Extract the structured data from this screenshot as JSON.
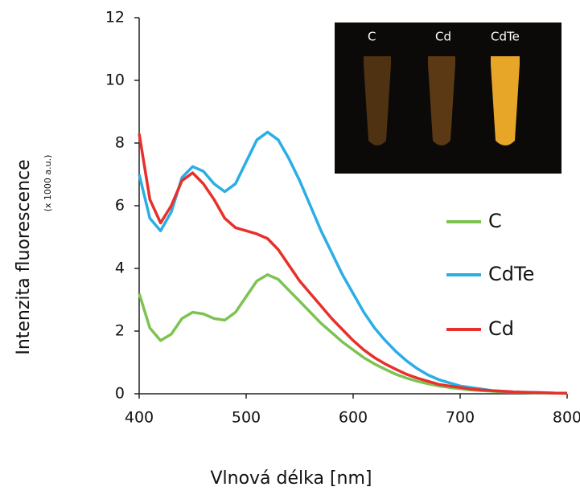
{
  "chart_data": {
    "type": "line",
    "x_label": "Vlnová délka [nm]",
    "y_label": "Intenzita fluorescence",
    "y_label_unit": "(x 1000 a.u.)",
    "inset_labels": [
      "C",
      "Cd",
      "CdTe"
    ],
    "xlim": [
      400,
      800
    ],
    "xticks": [
      400,
      500,
      600,
      700,
      800
    ],
    "ylim": [
      0,
      12
    ],
    "yticks": [
      0,
      2,
      4,
      6,
      8,
      10,
      12
    ],
    "x": [
      400,
      410,
      420,
      430,
      440,
      450,
      460,
      470,
      480,
      490,
      500,
      510,
      520,
      530,
      540,
      550,
      560,
      570,
      580,
      590,
      600,
      610,
      620,
      630,
      640,
      650,
      660,
      670,
      680,
      690,
      700,
      710,
      720,
      730,
      740,
      750,
      760,
      770,
      780,
      790,
      800
    ],
    "series": [
      {
        "name": "C",
        "color": "#7dc352",
        "values": [
          3.2,
          2.1,
          1.7,
          1.9,
          2.4,
          2.6,
          2.55,
          2.4,
          2.35,
          2.6,
          3.1,
          3.6,
          3.8,
          3.65,
          3.3,
          2.95,
          2.6,
          2.25,
          1.95,
          1.65,
          1.4,
          1.15,
          0.95,
          0.78,
          0.62,
          0.5,
          0.4,
          0.32,
          0.25,
          0.2,
          0.16,
          0.12,
          0.1,
          0.08,
          0.06,
          0.05,
          0.04,
          0.03,
          0.02,
          0.02,
          0.01
        ]
      },
      {
        "name": "CdTe",
        "color": "#2aaee6",
        "values": [
          7.0,
          5.6,
          5.2,
          5.8,
          6.9,
          7.25,
          7.1,
          6.7,
          6.45,
          6.7,
          7.4,
          8.1,
          8.35,
          8.1,
          7.5,
          6.8,
          6.0,
          5.2,
          4.5,
          3.8,
          3.2,
          2.6,
          2.1,
          1.7,
          1.35,
          1.05,
          0.8,
          0.6,
          0.45,
          0.35,
          0.25,
          0.2,
          0.15,
          0.1,
          0.08,
          0.06,
          0.05,
          0.04,
          0.03,
          0.02,
          0.02
        ]
      },
      {
        "name": "Cd",
        "color": "#e8302a",
        "values": [
          8.3,
          6.2,
          5.45,
          6.0,
          6.8,
          7.05,
          6.7,
          6.2,
          5.6,
          5.3,
          5.2,
          5.1,
          4.95,
          4.6,
          4.1,
          3.6,
          3.2,
          2.8,
          2.4,
          2.05,
          1.7,
          1.4,
          1.15,
          0.95,
          0.78,
          0.62,
          0.5,
          0.4,
          0.3,
          0.25,
          0.2,
          0.15,
          0.12,
          0.1,
          0.08,
          0.06,
          0.05,
          0.04,
          0.03,
          0.02,
          0.02
        ]
      }
    ]
  }
}
